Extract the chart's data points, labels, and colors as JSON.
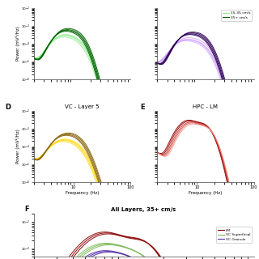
{
  "fig_width": 3.2,
  "fig_height": 3.2,
  "dpi": 100,
  "background_color": "#ffffff",
  "green_slow_color": "#90EE90",
  "green_fast_color": "#228B22",
  "green_dark_color": "#006400",
  "purple_slow_color": "#cc99ff",
  "purple_fast_color": "#5500aa",
  "purple_dark_color": "#2d0057",
  "yellow_slow_color": "#FFD700",
  "yellow_fast_color": "#8B6914",
  "yellow_dark_color": "#5a4000",
  "red_colors": [
    "#8B0000",
    "#a00000",
    "#c0392b",
    "#e05050",
    "#f1948a"
  ],
  "lm_color": "#8B0000",
  "vc_sup_color": "#7dbb57",
  "vc_gran_color": "#5533aa",
  "legend_slow": "15-35 cm/s",
  "legend_fast": "35+ cm/s",
  "title_bl": "VC - Layer 5",
  "title_br": "HPC - LM",
  "title_F": "All Layers, 35+ cm/s",
  "label_D": "D",
  "label_E": "E",
  "label_F": "F",
  "ylabel": "Power (mV²/Hz)",
  "xlabel": "Frequency (Hz)",
  "ylim": [
    1e-06,
    0.01
  ],
  "xlim_min": 2,
  "xlim_max": 100,
  "F_ylim": [
    0.0005,
    0.02
  ],
  "legend_F_labels": [
    "LM",
    "VC Superficial",
    "VC Granule"
  ]
}
